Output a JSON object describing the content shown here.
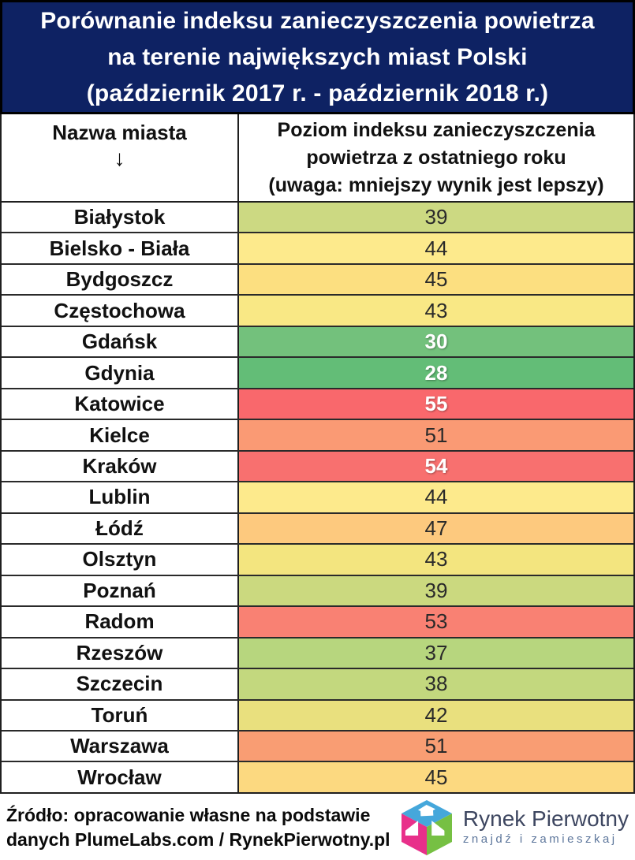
{
  "title": {
    "lines": [
      "Porównanie indeksu zanieczyszczenia powietrza",
      "na terenie największych miast Polski",
      "(październik 2017 r. - październik 2018 r.)"
    ]
  },
  "colors": {
    "title_bg": "#0e2263",
    "title_text": "#ffffff",
    "border": "#1f1f1f"
  },
  "table": {
    "col1_header": "Nazwa miasta",
    "col1_arrow": "↓",
    "col2_header_lines": [
      "Poziom indeksu zanieczyszczenia",
      "powietrza z ostatniego roku",
      "(uwaga: mniejszy wynik jest lepszy)"
    ],
    "rows": [
      {
        "city": "Białystok",
        "value": "39",
        "bg": "#ccd982",
        "white_text": false
      },
      {
        "city": "Bielsko - Biała",
        "value": "44",
        "bg": "#fdea8c",
        "white_text": false
      },
      {
        "city": "Bydgoszcz",
        "value": "45",
        "bg": "#fcdf80",
        "white_text": false
      },
      {
        "city": "Częstochowa",
        "value": "43",
        "bg": "#f9e885",
        "white_text": false
      },
      {
        "city": "Gdańsk",
        "value": "30",
        "bg": "#73c17c",
        "white_text": true
      },
      {
        "city": "Gdynia",
        "value": "28",
        "bg": "#63bd77",
        "white_text": true
      },
      {
        "city": "Katowice",
        "value": "55",
        "bg": "#f9686c",
        "white_text": true
      },
      {
        "city": "Kielce",
        "value": "51",
        "bg": "#fa9a74",
        "white_text": false
      },
      {
        "city": "Kraków",
        "value": "54",
        "bg": "#f8706f",
        "white_text": true
      },
      {
        "city": "Lublin",
        "value": "44",
        "bg": "#fdea8c",
        "white_text": false
      },
      {
        "city": "Łódź",
        "value": "47",
        "bg": "#fdc97e",
        "white_text": false
      },
      {
        "city": "Olsztyn",
        "value": "43",
        "bg": "#f3e57f",
        "white_text": false
      },
      {
        "city": "Poznań",
        "value": "39",
        "bg": "#cbd97f",
        "white_text": false
      },
      {
        "city": "Radom",
        "value": "53",
        "bg": "#f98173",
        "white_text": false
      },
      {
        "city": "Rzeszów",
        "value": "37",
        "bg": "#b7d67e",
        "white_text": false
      },
      {
        "city": "Szczecin",
        "value": "38",
        "bg": "#c3d87e",
        "white_text": false
      },
      {
        "city": "Toruń",
        "value": "42",
        "bg": "#e9e07e",
        "white_text": false
      },
      {
        "city": "Warszawa",
        "value": "51",
        "bg": "#f99d73",
        "white_text": false
      },
      {
        "city": "Wrocław",
        "value": "45",
        "bg": "#fcd980",
        "white_text": false
      }
    ]
  },
  "chart_data": {
    "type": "table",
    "title": "Porównanie indeksu zanieczyszczenia powietrza na terenie największych miast Polski (październik 2017 r. - październik 2018 r.)",
    "columns": [
      "Nazwa miasta",
      "Poziom indeksu zanieczyszczenia powietrza z ostatniego roku"
    ],
    "note": "uwaga: mniejszy wynik jest lepszy",
    "categories": [
      "Białystok",
      "Bielsko - Biała",
      "Bydgoszcz",
      "Częstochowa",
      "Gdańsk",
      "Gdynia",
      "Katowice",
      "Kielce",
      "Kraków",
      "Lublin",
      "Łódź",
      "Olsztyn",
      "Poznań",
      "Radom",
      "Rzeszów",
      "Szczecin",
      "Toruń",
      "Warszawa",
      "Wrocław"
    ],
    "values": [
      39,
      44,
      45,
      43,
      30,
      28,
      55,
      51,
      54,
      44,
      47,
      43,
      39,
      53,
      37,
      38,
      42,
      51,
      45
    ]
  },
  "footer": {
    "source_lines": [
      "Źródło: opracowanie własne na podstawie",
      "danych PlumeLabs.com / RynekPierwotny.pl"
    ],
    "logo": {
      "brand": "Rynek Pierwotny",
      "tagline": "znajdź i zamieszkaj",
      "cube_top": "#45a7db",
      "cube_left": "#e8308a",
      "cube_right": "#76c043"
    }
  }
}
